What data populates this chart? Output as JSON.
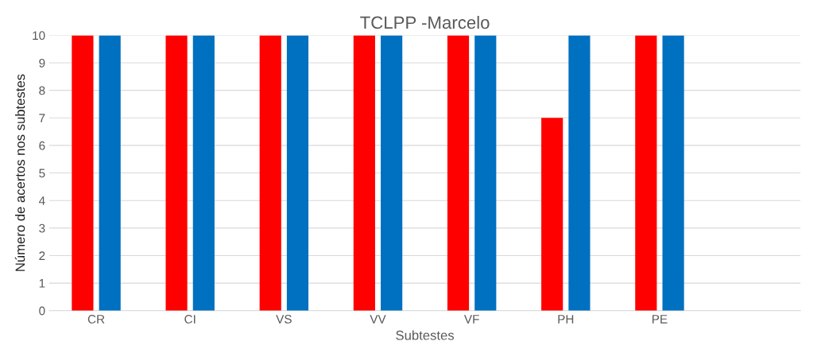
{
  "chart_data": {
    "type": "bar",
    "title": "TCLPP -Marcelo",
    "xlabel": "Subtestes",
    "ylabel": "Número de acertos nos subtestes",
    "categories": [
      "CR",
      "CI",
      "VS",
      "VV",
      "VF",
      "PH",
      "PE",
      null
    ],
    "series": [
      {
        "color": "#ff0000",
        "values": [
          10,
          10,
          10,
          10,
          10,
          7,
          10,
          null
        ]
      },
      {
        "color": "#0070c0",
        "values": [
          10,
          10,
          10,
          10,
          10,
          10,
          10,
          null
        ]
      }
    ],
    "ylim": [
      0,
      10
    ],
    "yticks": [
      0,
      1,
      2,
      3,
      4,
      5,
      6,
      7,
      8,
      9,
      10
    ],
    "grid": "y",
    "legend": false
  }
}
